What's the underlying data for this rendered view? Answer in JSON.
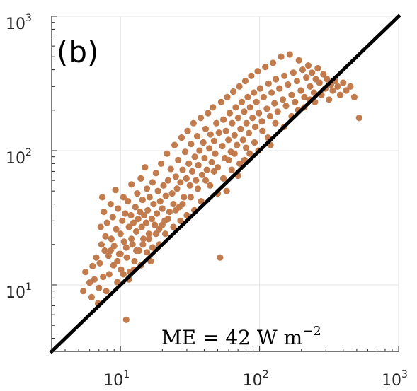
{
  "chart_data": {
    "type": "scatter",
    "panel_label": "(b)",
    "annotation": {
      "text": "ME = 42 W m",
      "superscript": "−2"
    },
    "xscale": "log",
    "yscale": "log",
    "xlim": [
      3.2,
      1000
    ],
    "ylim": [
      3.2,
      1000
    ],
    "grid": true,
    "x_ticks": [
      {
        "base": "10",
        "exp": "1",
        "value": 10
      },
      {
        "base": "10",
        "exp": "2",
        "value": 100
      },
      {
        "base": "10",
        "exp": "3",
        "value": 1000
      }
    ],
    "y_ticks": [
      {
        "base": "10",
        "exp": "1",
        "value": 10
      },
      {
        "base": "10",
        "exp": "2",
        "value": 100
      },
      {
        "base": "10",
        "exp": "3",
        "value": 1000
      }
    ],
    "reference_line": "1:1",
    "colors": {
      "points": [
        "#6e4228",
        "#8a5434",
        "#a5653e",
        "#c27b4c",
        "#7d4a2c",
        "#5e3620",
        "#b86f45"
      ],
      "line": "#000000",
      "grid": "#e3e3e3",
      "axis": "#262626"
    },
    "points": [
      [
        5.4,
        9.0
      ],
      [
        5.6,
        12.5
      ],
      [
        6.0,
        10.4
      ],
      [
        6.2,
        8.1
      ],
      [
        6.3,
        13.8
      ],
      [
        6.5,
        11.0
      ],
      [
        6.7,
        16.0
      ],
      [
        6.9,
        7.3
      ],
      [
        7.0,
        9.5
      ],
      [
        7.1,
        14.5
      ],
      [
        7.2,
        27.0
      ],
      [
        7.3,
        20.0
      ],
      [
        7.4,
        45.0
      ],
      [
        7.5,
        11.5
      ],
      [
        7.6,
        35.0
      ],
      [
        7.7,
        18.0
      ],
      [
        7.8,
        23.0
      ],
      [
        7.9,
        9.0
      ],
      [
        8.0,
        29.0
      ],
      [
        8.2,
        16.5
      ],
      [
        8.3,
        12.0
      ],
      [
        8.5,
        40.0
      ],
      [
        8.6,
        22.0
      ],
      [
        8.8,
        32.0
      ],
      [
        8.9,
        14.0
      ],
      [
        9.0,
        19.5
      ],
      [
        9.2,
        51.0
      ],
      [
        9.3,
        26.0
      ],
      [
        9.5,
        10.5
      ],
      [
        9.6,
        37.0
      ],
      [
        9.8,
        17.0
      ],
      [
        10.0,
        24.0
      ],
      [
        10.1,
        13.0
      ],
      [
        10.3,
        30.0
      ],
      [
        10.5,
        45.0
      ],
      [
        10.6,
        21.0
      ],
      [
        10.8,
        34.0
      ],
      [
        11.0,
        5.5
      ],
      [
        11.1,
        16.0
      ],
      [
        11.3,
        42.0
      ],
      [
        11.5,
        27.0
      ],
      [
        11.7,
        12.5
      ],
      [
        11.9,
        33.0
      ],
      [
        12.0,
        56.0
      ],
      [
        12.2,
        20.0
      ],
      [
        12.4,
        29.0
      ],
      [
        12.6,
        15.0
      ],
      [
        12.8,
        38.0
      ],
      [
        13.0,
        25.0
      ],
      [
        13.2,
        48.0
      ],
      [
        13.4,
        31.0
      ],
      [
        13.6,
        18.0
      ],
      [
        13.8,
        35.0
      ],
      [
        14.0,
        62.0
      ],
      [
        14.2,
        27.0
      ],
      [
        14.4,
        43.0
      ],
      [
        14.6,
        22.0
      ],
      [
        14.8,
        33.0
      ],
      [
        15.0,
        75.0
      ],
      [
        15.3,
        29.0
      ],
      [
        15.5,
        52.0
      ],
      [
        15.7,
        36.0
      ],
      [
        16.0,
        24.0
      ],
      [
        16.2,
        45.0
      ],
      [
        16.5,
        15.0
      ],
      [
        16.8,
        31.0
      ],
      [
        17.0,
        58.0
      ],
      [
        17.3,
        40.0
      ],
      [
        17.6,
        28.0
      ],
      [
        18.0,
        68.0
      ],
      [
        18.3,
        34.0
      ],
      [
        18.6,
        50.0
      ],
      [
        19.0,
        26.0
      ],
      [
        19.3,
        42.0
      ],
      [
        19.6,
        80.0
      ],
      [
        20.0,
        37.0
      ],
      [
        20.4,
        55.0
      ],
      [
        20.8,
        30.0
      ],
      [
        21.2,
        46.0
      ],
      [
        21.6,
        95.0
      ],
      [
        22.0,
        60.0
      ],
      [
        22.5,
        35.0
      ],
      [
        23.0,
        73.0
      ],
      [
        23.5,
        48.0
      ],
      [
        24.0,
        40.0
      ],
      [
        24.5,
        110.0
      ],
      [
        25.0,
        64.0
      ],
      [
        25.5,
        52.0
      ],
      [
        26.0,
        85.0
      ],
      [
        26.5,
        38.0
      ],
      [
        27.0,
        58.0
      ],
      [
        27.5,
        125.0
      ],
      [
        28.0,
        72.0
      ],
      [
        28.6,
        45.0
      ],
      [
        29.2,
        98.0
      ],
      [
        29.8,
        62.0
      ],
      [
        30.4,
        140.0
      ],
      [
        31.0,
        80.0
      ],
      [
        31.6,
        55.0
      ],
      [
        32.2,
        112.0
      ],
      [
        32.8,
        70.0
      ],
      [
        33.5,
        160.0
      ],
      [
        34.2,
        90.0
      ],
      [
        34.9,
        60.0
      ],
      [
        35.6,
        128.0
      ],
      [
        36.3,
        78.0
      ],
      [
        37.0,
        100.0
      ],
      [
        37.8,
        175.0
      ],
      [
        38.6,
        66.0
      ],
      [
        39.4,
        115.0
      ],
      [
        40.2,
        88.0
      ],
      [
        41.0,
        145.0
      ],
      [
        41.8,
        72.0
      ],
      [
        42.6,
        190.0
      ],
      [
        43.5,
        104.0
      ],
      [
        44.4,
        132.0
      ],
      [
        45.3,
        82.0
      ],
      [
        46.2,
        210.0
      ],
      [
        47.1,
        118.0
      ],
      [
        48.0,
        95.0
      ],
      [
        49.0,
        160.0
      ],
      [
        50.0,
        75.0
      ],
      [
        51.0,
        136.0
      ],
      [
        52.0,
        16.0
      ],
      [
        53.0,
        230.0
      ],
      [
        54.0,
        108.0
      ],
      [
        55.0,
        170.0
      ],
      [
        56.2,
        88.0
      ],
      [
        57.4,
        140.0
      ],
      [
        58.6,
        250.0
      ],
      [
        59.8,
        120.0
      ],
      [
        61.0,
        190.0
      ],
      [
        62.2,
        98.0
      ],
      [
        63.5,
        160.0
      ],
      [
        64.8,
        275.0
      ],
      [
        66.1,
        130.0
      ],
      [
        67.4,
        210.0
      ],
      [
        68.8,
        110.0
      ],
      [
        70.2,
        175.0
      ],
      [
        71.6,
        300.0
      ],
      [
        73.0,
        145.0
      ],
      [
        74.5,
        230.0
      ],
      [
        76.0,
        120.0
      ],
      [
        77.5,
        195.0
      ],
      [
        79.0,
        330.0
      ],
      [
        80.6,
        160.0
      ],
      [
        82.2,
        250.0
      ],
      [
        83.8,
        135.0
      ],
      [
        85.5,
        210.0
      ],
      [
        87.2,
        360.0
      ],
      [
        89.0,
        175.0
      ],
      [
        91.0,
        270.0
      ],
      [
        93.0,
        150.0
      ],
      [
        95.0,
        230.0
      ],
      [
        97.0,
        390.0
      ],
      [
        99.0,
        190.0
      ],
      [
        101.0,
        290.0
      ],
      [
        104.0,
        165.0
      ],
      [
        107.0,
        250.0
      ],
      [
        110.0,
        420.0
      ],
      [
        113.0,
        205.0
      ],
      [
        116.0,
        315.0
      ],
      [
        119.0,
        180.0
      ],
      [
        122.0,
        270.0
      ],
      [
        125.0,
        450.0
      ],
      [
        128.0,
        225.0
      ],
      [
        131.0,
        340.0
      ],
      [
        135.0,
        195.0
      ],
      [
        139.0,
        290.0
      ],
      [
        143.0,
        500.0
      ],
      [
        147.0,
        240.0
      ],
      [
        151.0,
        360.0
      ],
      [
        155.0,
        215.0
      ],
      [
        160.0,
        310.0
      ],
      [
        165.0,
        520.0
      ],
      [
        170.0,
        260.0
      ],
      [
        175.0,
        380.0
      ],
      [
        180.0,
        230.0
      ],
      [
        186.0,
        330.0
      ],
      [
        192.0,
        470.0
      ],
      [
        198.0,
        280.0
      ],
      [
        204.0,
        400.0
      ],
      [
        210.0,
        250.0
      ],
      [
        217.0,
        350.0
      ],
      [
        224.0,
        430.0
      ],
      [
        231.0,
        300.0
      ],
      [
        238.0,
        380.0
      ],
      [
        246.0,
        270.0
      ],
      [
        254.0,
        340.0
      ],
      [
        262.0,
        410.0
      ],
      [
        270.0,
        320.0
      ],
      [
        279.0,
        260.0
      ],
      [
        288.0,
        370.0
      ],
      [
        297.0,
        290.0
      ],
      [
        306.0,
        340.0
      ],
      [
        316.0,
        240.0
      ],
      [
        326.0,
        310.0
      ],
      [
        336.0,
        280.0
      ],
      [
        350.0,
        330.0
      ],
      [
        365.0,
        300.0
      ],
      [
        380.0,
        260.0
      ],
      [
        400.0,
        320.0
      ],
      [
        420.0,
        280.0
      ],
      [
        450.0,
        300.0
      ],
      [
        480.0,
        250.0
      ],
      [
        520.0,
        175.0
      ],
      [
        105.0,
        140.0
      ],
      [
        92.0,
        115.0
      ],
      [
        85.0,
        95.0
      ],
      [
        78.0,
        85.0
      ],
      [
        70.0,
        65.0
      ],
      [
        63.0,
        72.0
      ],
      [
        58.0,
        50.0
      ],
      [
        50.0,
        48.0
      ],
      [
        44.0,
        55.0
      ],
      [
        38.0,
        42.0
      ],
      [
        34.0,
        36.0
      ],
      [
        30.0,
        33.0
      ],
      [
        27.0,
        30.0
      ],
      [
        24.0,
        27.0
      ],
      [
        21.0,
        24.0
      ],
      [
        19.0,
        20.0
      ],
      [
        17.0,
        19.0
      ],
      [
        15.5,
        17.5
      ],
      [
        14.0,
        14.0
      ],
      [
        12.5,
        13.0
      ],
      [
        11.5,
        11.0
      ],
      [
        10.5,
        12.0
      ],
      [
        9.5,
        15.0
      ],
      [
        8.5,
        18.0
      ],
      [
        130.0,
        160.0
      ],
      [
        150.0,
        150.0
      ],
      [
        170.0,
        180.0
      ],
      [
        190.0,
        200.0
      ],
      [
        210.0,
        210.0
      ],
      [
        230.0,
        240.0
      ],
      [
        250.0,
        230.0
      ],
      [
        120.0,
        110.0
      ],
      [
        98.0,
        100.0
      ],
      [
        115.0,
        125.0
      ],
      [
        60.0,
        85.0
      ],
      [
        66.0,
        95.0
      ],
      [
        72.0,
        80.0
      ],
      [
        80.0,
        105.0
      ],
      [
        55.0,
        62.0
      ],
      [
        47.0,
        70.0
      ],
      [
        41.0,
        60.0
      ],
      [
        36.0,
        52.0
      ],
      [
        32.0,
        45.0
      ],
      [
        28.0,
        40.0
      ],
      [
        25.0,
        36.0
      ],
      [
        22.0,
        31.0
      ],
      [
        20.0,
        28.0
      ],
      [
        18.0,
        24.0
      ],
      [
        16.0,
        22.0
      ],
      [
        14.5,
        20.0
      ],
      [
        13.0,
        18.0
      ],
      [
        12.0,
        22.0
      ],
      [
        11.0,
        19.0
      ],
      [
        10.0,
        17.0
      ]
    ]
  }
}
